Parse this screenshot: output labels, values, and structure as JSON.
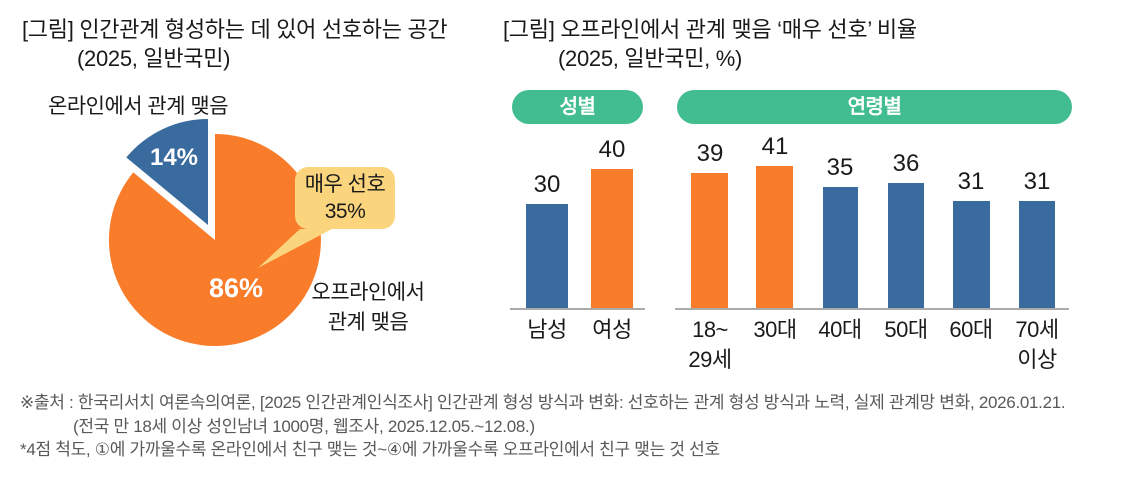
{
  "colors": {
    "blue": "#3A6B9E",
    "orange": "#F97C2B",
    "green": "#41BD8F",
    "yellow": "#FBD57E",
    "text": "#1A1A1A",
    "muted_text": "#595959",
    "axis_line": "#ABABAB",
    "white": "#FFFFFF"
  },
  "left_chart": {
    "title_line1": "[그림] 인간관계 형성하는 데 있어 선호하는 공간",
    "title_line2": "(2025, 일반국민)",
    "online_label": "온라인에서 관계 맺음",
    "offline_label_line1": "오프라인에서",
    "offline_label_line2": "관계 맺음",
    "slice_online_pct": "14%",
    "slice_offline_pct": "86%",
    "callout_line1": "매우 선호",
    "callout_line2": "35%"
  },
  "right_chart": {
    "title_line1": "[그림] 오프라인에서 관계 맺음 ‘매우 선호’ 비율",
    "title_line2": "(2025, 일반국민, %)",
    "badge_gender": "성별",
    "badge_age": "연령별",
    "bars": [
      {
        "label1": "남성",
        "label2": "",
        "value": 30,
        "color": "blue"
      },
      {
        "label1": "여성",
        "label2": "",
        "value": 40,
        "color": "orange"
      },
      {
        "label1": "18~",
        "label2": "29세",
        "value": 39,
        "color": "orange"
      },
      {
        "label1": "30대",
        "label2": "",
        "value": 41,
        "color": "orange"
      },
      {
        "label1": "40대",
        "label2": "",
        "value": 35,
        "color": "blue"
      },
      {
        "label1": "50대",
        "label2": "",
        "value": 36,
        "color": "blue"
      },
      {
        "label1": "60대",
        "label2": "",
        "value": 31,
        "color": "blue"
      },
      {
        "label1": "70세",
        "label2": "이상",
        "value": 31,
        "color": "blue"
      }
    ]
  },
  "footer": {
    "line1": "※출처 : 한국리서치 여론속의여론, [2025 인간관계인식조사] 인간관계 형성 방식과 변화: 선호하는 관계 형성 방식과 노력, 실제 관계망 변화, 2026.01.21.",
    "line2": "(전국 만 18세 이상 성인남녀 1000명, 웹조사, 2025.12.05.~12.08.)",
    "line3": "*4점 척도, ①에 가까울수록 온라인에서 친구 맺는 것~④에 가까울수록 오프라인에서 친구 맺는 것 선호"
  },
  "chart_data": [
    {
      "type": "pie",
      "title": "[그림] 인간관계 형성하는 데 있어 선호하는 공간 (2025, 일반국민)",
      "labels": [
        "오프라인에서 관계 맺음",
        "온라인에서 관계 맺음"
      ],
      "values": [
        86,
        14
      ],
      "unit": "%",
      "annotation": "오프라인에서 관계 맺음 중 매우 선호 35%",
      "exploded_slice": "온라인에서 관계 맺음"
    },
    {
      "type": "bar",
      "title": "[그림] 오프라인에서 관계 맺음 ‘매우 선호’ 비율 (2025, 일반국민, %)",
      "groups": [
        {
          "name": "성별",
          "categories": [
            "남성",
            "여성"
          ],
          "values": [
            30,
            40
          ]
        },
        {
          "name": "연령별",
          "categories": [
            "18~29세",
            "30대",
            "40대",
            "50대",
            "60대",
            "70세 이상"
          ],
          "values": [
            39,
            41,
            35,
            36,
            31,
            31
          ]
        }
      ],
      "unit": "%",
      "ylim": [
        0,
        50
      ],
      "grid": false,
      "value_labels": true
    }
  ]
}
